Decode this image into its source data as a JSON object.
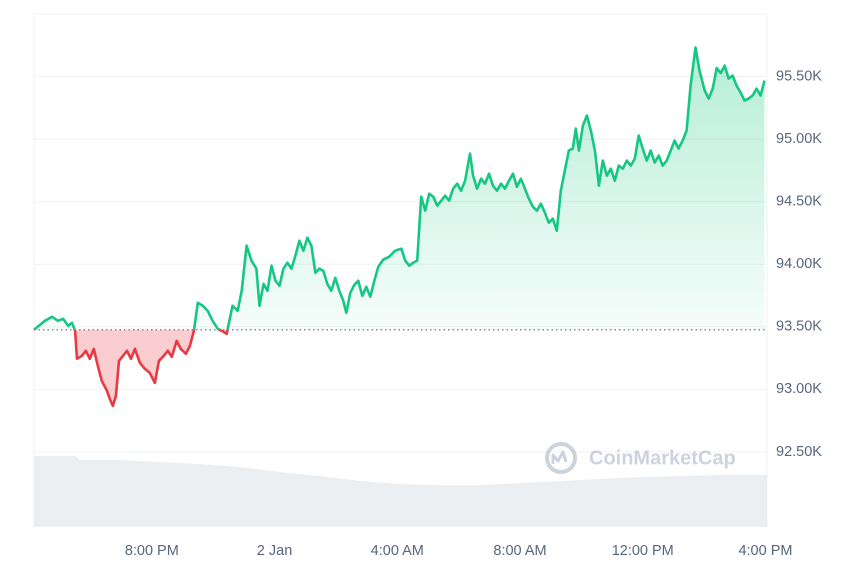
{
  "chart_data": {
    "type": "line",
    "watermark": "CoinMarketCap",
    "color_up": "#16c784",
    "color_down": "#ea3943",
    "baseline": 93476,
    "xlim": [
      -7.84,
      16.05
    ],
    "ylim": [
      91900,
      96000
    ],
    "xticks": [
      {
        "value": -4,
        "label": "8:00 PM"
      },
      {
        "value": 0,
        "label": "2 Jan"
      },
      {
        "value": 4,
        "label": "4:00 AM"
      },
      {
        "value": 8,
        "label": "8:00 AM"
      },
      {
        "value": 12,
        "label": "12:00 PM"
      },
      {
        "value": 16,
        "label": "4:00 PM"
      }
    ],
    "yticks": [
      {
        "value": 92500,
        "label": "92.50K"
      },
      {
        "value": 93000,
        "label": "93.00K"
      },
      {
        "value": 93500,
        "label": "93.50K"
      },
      {
        "value": 94000,
        "label": "94.00K"
      },
      {
        "value": 94500,
        "label": "94.50K"
      },
      {
        "value": 95000,
        "label": "95.00K"
      },
      {
        "value": 95500,
        "label": "95.50K"
      }
    ],
    "grid": true,
    "x": [
      -7.84,
      -7.48,
      -7.25,
      -7.06,
      -6.89,
      -6.73,
      -6.6,
      -6.5,
      -6.44,
      -6.28,
      -6.15,
      -6.02,
      -5.89,
      -5.76,
      -5.63,
      -5.46,
      -5.37,
      -5.27,
      -5.17,
      -5.07,
      -4.94,
      -4.81,
      -4.68,
      -4.55,
      -4.39,
      -4.23,
      -4.07,
      -3.9,
      -3.77,
      -3.61,
      -3.48,
      -3.35,
      -3.19,
      -3.06,
      -2.89,
      -2.76,
      -2.63,
      -2.5,
      -2.34,
      -2.18,
      -2.02,
      -1.85,
      -1.72,
      -1.56,
      -1.46,
      -1.37,
      -1.2,
      -1.07,
      -0.91,
      -0.75,
      -0.59,
      -0.49,
      -0.36,
      -0.23,
      -0.1,
      0.03,
      0.16,
      0.29,
      0.42,
      0.55,
      0.68,
      0.81,
      0.94,
      1.07,
      1.2,
      1.33,
      1.46,
      1.59,
      1.72,
      1.85,
      1.98,
      2.11,
      2.24,
      2.34,
      2.47,
      2.6,
      2.73,
      2.86,
      2.99,
      3.12,
      3.25,
      3.38,
      3.54,
      3.74,
      3.93,
      4.13,
      4.26,
      4.39,
      4.52,
      4.65,
      4.78,
      4.91,
      5.04,
      5.17,
      5.3,
      5.43,
      5.56,
      5.69,
      5.82,
      5.95,
      6.08,
      6.21,
      6.37,
      6.47,
      6.6,
      6.73,
      6.86,
      6.99,
      7.12,
      7.25,
      7.38,
      7.51,
      7.64,
      7.77,
      7.9,
      8.03,
      8.16,
      8.29,
      8.42,
      8.55,
      8.68,
      8.81,
      8.94,
      9.07,
      9.2,
      9.33,
      9.46,
      9.59,
      9.72,
      9.82,
      9.92,
      10.05,
      10.18,
      10.31,
      10.44,
      10.57,
      10.7,
      10.83,
      10.96,
      11.09,
      11.22,
      11.35,
      11.48,
      11.61,
      11.74,
      11.87,
      12.0,
      12.13,
      12.26,
      12.39,
      12.52,
      12.65,
      12.78,
      12.91,
      13.04,
      13.17,
      13.3,
      13.43,
      13.56,
      13.72,
      13.85,
      14.02,
      14.15,
      14.28,
      14.41,
      14.54,
      14.67,
      14.8,
      14.93,
      15.06,
      15.19,
      15.32,
      15.45,
      15.58,
      15.71,
      15.84,
      15.97
    ],
    "values": [
      93476,
      93548,
      93580,
      93548,
      93564,
      93508,
      93532,
      93468,
      93244,
      93268,
      93308,
      93244,
      93324,
      93188,
      93068,
      92988,
      92924,
      92868,
      92948,
      93228,
      93268,
      93308,
      93244,
      93324,
      93212,
      93164,
      93132,
      93052,
      93228,
      93268,
      93308,
      93260,
      93388,
      93324,
      93284,
      93348,
      93468,
      93692,
      93668,
      93628,
      93548,
      93484,
      93468,
      93444,
      93564,
      93668,
      93628,
      93788,
      94148,
      94028,
      93964,
      93668,
      93844,
      93788,
      93988,
      93868,
      93828,
      93964,
      94012,
      93964,
      94068,
      94188,
      94108,
      94212,
      94148,
      93932,
      93964,
      93948,
      93844,
      93788,
      93892,
      93788,
      93708,
      93612,
      93772,
      93836,
      93868,
      93748,
      93820,
      93740,
      93868,
      93980,
      94036,
      94060,
      94108,
      94124,
      94028,
      93988,
      94012,
      94028,
      94540,
      94428,
      94564,
      94540,
      94468,
      94508,
      94548,
      94508,
      94604,
      94644,
      94588,
      94668,
      94884,
      94708,
      94604,
      94684,
      94644,
      94724,
      94628,
      94588,
      94644,
      94604,
      94668,
      94724,
      94620,
      94684,
      94604,
      94524,
      94460,
      94428,
      94484,
      94412,
      94332,
      94364,
      94268,
      94588,
      94748,
      94908,
      94924,
      95084,
      94908,
      95108,
      95188,
      95068,
      94908,
      94628,
      94828,
      94708,
      94764,
      94668,
      94788,
      94764,
      94828,
      94788,
      94844,
      95028,
      94924,
      94828,
      94908,
      94812,
      94868,
      94788,
      94828,
      94908,
      94988,
      94924,
      94988,
      95068,
      95428,
      95732,
      95548,
      95388,
      95324,
      95404,
      95568,
      95528,
      95588,
      95484,
      95508,
      95428,
      95372,
      95308,
      95324,
      95348,
      95404,
      95348,
      95468
    ]
  }
}
